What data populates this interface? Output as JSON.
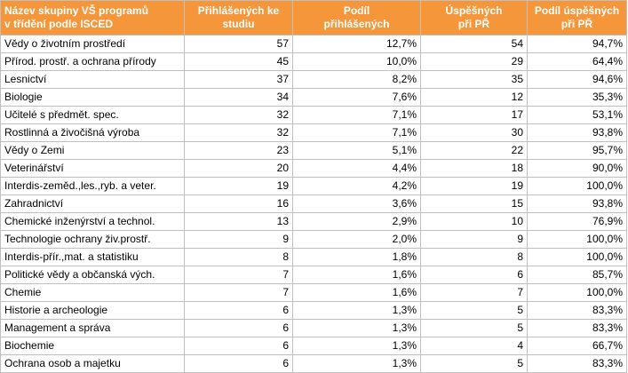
{
  "chart_data": {
    "type": "table",
    "columns": [
      [
        "Název skupiny VŠ programů",
        "v třídění podle ISCED"
      ],
      [
        "Přihlášených ke",
        "studiu"
      ],
      [
        "Podíl",
        "přihlášených"
      ],
      [
        "Úspěšných",
        "při PŘ"
      ],
      [
        "Podíl úspěšných",
        "při PŘ"
      ]
    ],
    "rows": [
      [
        "Vědy o životním prostředí",
        "57",
        "12,7%",
        "54",
        "94,7%"
      ],
      [
        "Přírod. prostř. a ochrana přírody",
        "45",
        "10,0%",
        "29",
        "64,4%"
      ],
      [
        "Lesnictví",
        "37",
        "8,2%",
        "35",
        "94,6%"
      ],
      [
        "Biologie",
        "34",
        "7,6%",
        "12",
        "35,3%"
      ],
      [
        "Učitelé s předmět. spec.",
        "32",
        "7,1%",
        "17",
        "53,1%"
      ],
      [
        "Rostlinná a živočišná výroba",
        "32",
        "7,1%",
        "30",
        "93,8%"
      ],
      [
        "Vědy o Zemi",
        "23",
        "5,1%",
        "22",
        "95,7%"
      ],
      [
        "Veterinářství",
        "20",
        "4,4%",
        "18",
        "90,0%"
      ],
      [
        "Interdis-zeměd.,les.,ryb. a veter.",
        "19",
        "4,2%",
        "19",
        "100,0%"
      ],
      [
        "Zahradnictví",
        "16",
        "3,6%",
        "15",
        "93,8%"
      ],
      [
        "Chemické inženýrství a technol.",
        "13",
        "2,9%",
        "10",
        "76,9%"
      ],
      [
        "Technologie ochrany živ.prostř.",
        "9",
        "2,0%",
        "9",
        "100,0%"
      ],
      [
        "Interdis-přír.,mat. a statistiku",
        "8",
        "1,8%",
        "8",
        "100,0%"
      ],
      [
        "Politické vědy a občanská vých.",
        "7",
        "1,6%",
        "6",
        "85,7%"
      ],
      [
        "Chemie",
        "7",
        "1,6%",
        "7",
        "100,0%"
      ],
      [
        "Historie a archeologie",
        "6",
        "1,3%",
        "5",
        "83,3%"
      ],
      [
        "Management a správa",
        "6",
        "1,3%",
        "5",
        "83,3%"
      ],
      [
        "Biochemie",
        "6",
        "1,3%",
        "4",
        "66,7%"
      ],
      [
        "Ochrana osob a majetku",
        "6",
        "1,3%",
        "5",
        "83,3%"
      ]
    ]
  },
  "colors": {
    "header_bg": "#f6963a",
    "header_text": "#ffffff",
    "grid": "#bfbfbf"
  }
}
